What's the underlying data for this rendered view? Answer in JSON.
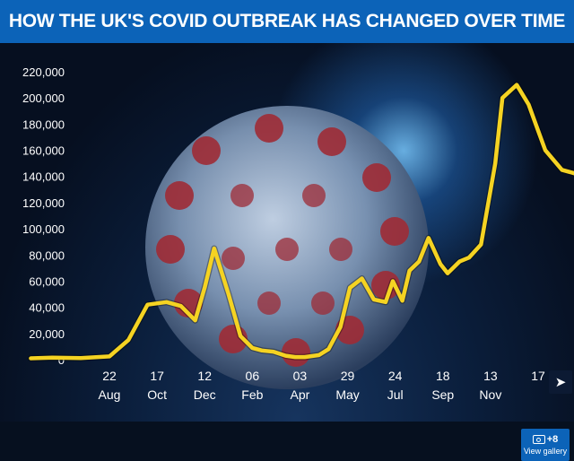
{
  "header": {
    "title": "HOW THE UK'S COVID OUTBREAK HAS CHANGED OVER TIME"
  },
  "chart_data": {
    "type": "line",
    "title": "HOW THE UK'S COVID OUTBREAK HAS CHANGED OVER TIME",
    "xlabel": "",
    "ylabel": "",
    "ylim": [
      0,
      220000
    ],
    "grid": false,
    "yticks": [
      0,
      20000,
      40000,
      60000,
      80000,
      100000,
      120000,
      140000,
      160000,
      180000,
      200000,
      220000
    ],
    "ytick_labels": [
      "0",
      "20,000",
      "40,000",
      "60,000",
      "80,000",
      "100,000",
      "120,000",
      "140,000",
      "160,000",
      "180,000",
      "200,000",
      "220,000"
    ],
    "xtick_days": [
      "22",
      "17",
      "12",
      "06",
      "03",
      "29",
      "24",
      "18",
      "13",
      "17"
    ],
    "xtick_months": [
      "Aug",
      "Oct",
      "Dec",
      "Feb",
      "Apr",
      "May",
      "Jul",
      "Sep",
      "Nov",
      ""
    ],
    "xlim_index": [
      0,
      10
    ],
    "series": [
      {
        "name": "",
        "color": "#f5d322",
        "x": [
          -1.65,
          -1.2,
          -0.6,
          0,
          0.4,
          0.8,
          1.2,
          1.5,
          1.8,
          2.0,
          2.2,
          2.5,
          2.75,
          3.0,
          3.2,
          3.45,
          3.7,
          3.9,
          4.1,
          4.4,
          4.6,
          4.85,
          5.05,
          5.3,
          5.55,
          5.8,
          5.95,
          6.15,
          6.3,
          6.5,
          6.7,
          6.95,
          7.1,
          7.35,
          7.55,
          7.8,
          8.1,
          8.25,
          8.55,
          8.8,
          9.0,
          9.15,
          9.5,
          9.8,
          10.0
        ],
        "values": [
          1000,
          1500,
          1200,
          2500,
          15000,
          42000,
          44000,
          41000,
          30000,
          55000,
          85000,
          50000,
          18000,
          9000,
          7000,
          6000,
          3000,
          2000,
          2000,
          3500,
          8000,
          25000,
          55000,
          62000,
          46000,
          44000,
          60000,
          45000,
          68000,
          75000,
          93000,
          73000,
          66000,
          75000,
          78000,
          88000,
          150000,
          200000,
          210000,
          195000,
          175000,
          160000,
          145000,
          142000,
          143000
        ]
      }
    ]
  },
  "controls": {
    "share_icon": "share-icon",
    "gallery_count": "+8",
    "gallery_label": "View gallery"
  }
}
